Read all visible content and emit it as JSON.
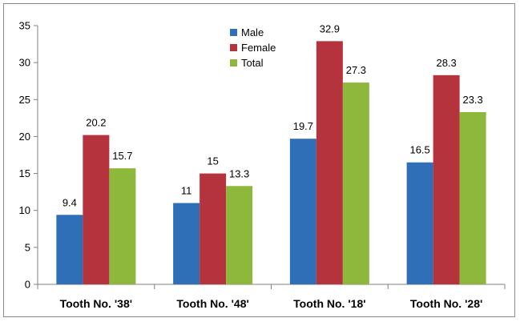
{
  "chart_data": {
    "type": "bar",
    "categories": [
      "Tooth No. '38'",
      "Tooth No. '48'",
      "Tooth No. '18'",
      "Tooth No. '28'"
    ],
    "series": [
      {
        "name": "Male",
        "color": "#2f6fb8",
        "values": [
          9.4,
          11,
          19.7,
          16.5
        ],
        "labels": [
          "9.4",
          "11",
          "19.7",
          "16.5"
        ]
      },
      {
        "name": "Female",
        "color": "#b5333c",
        "values": [
          20.2,
          15,
          32.9,
          28.3
        ],
        "labels": [
          "20.2",
          "15",
          "32.9",
          "28.3"
        ]
      },
      {
        "name": "Total",
        "color": "#8db83c",
        "values": [
          15.7,
          13.3,
          27.3,
          23.3
        ],
        "labels": [
          "15.7",
          "13.3",
          "27.3",
          "23.3"
        ]
      }
    ],
    "title": "",
    "xlabel": "",
    "ylabel": "",
    "ylim": [
      0,
      35
    ],
    "yticks": [
      "0",
      "5",
      "10",
      "15",
      "20",
      "25",
      "30",
      "35"
    ],
    "grid": false,
    "legend_position": "top-center"
  }
}
